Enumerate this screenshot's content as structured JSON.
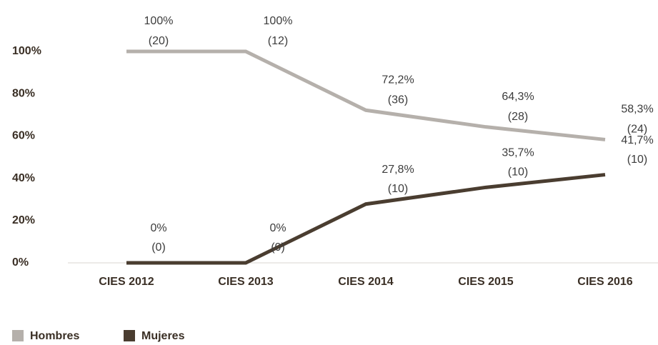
{
  "chart_data": {
    "type": "line",
    "categories": [
      "CIES 2012",
      "CIES 2013",
      "CIES 2014",
      "CIES 2015",
      "CIES 2016"
    ],
    "series": [
      {
        "name": "Hombres",
        "color": "#b5b0ab",
        "values": [
          100,
          100,
          72.2,
          64.3,
          58.3
        ],
        "value_labels": [
          "100%",
          "100%",
          "72,2%",
          "64,3%",
          "58,3%"
        ],
        "count_labels": [
          "(20)",
          "(12)",
          "(36)",
          "(28)",
          "(24)"
        ]
      },
      {
        "name": "Mujeres",
        "color": "#4a3d30",
        "values": [
          0,
          0,
          27.8,
          35.7,
          41.7
        ],
        "value_labels": [
          "0%",
          "0%",
          "27,8%",
          "35,7%",
          "41,7%"
        ],
        "count_labels": [
          "(0)",
          "(0)",
          "(10)",
          "(10)",
          "(10)"
        ]
      }
    ],
    "ylim": [
      0,
      100
    ],
    "yticks": [
      {
        "value": 0,
        "label": "0%"
      },
      {
        "value": 20,
        "label": "20%"
      },
      {
        "value": 40,
        "label": "40%"
      },
      {
        "value": 60,
        "label": "60%"
      },
      {
        "value": 80,
        "label": "80%"
      },
      {
        "value": 100,
        "label": "100%"
      }
    ],
    "grid": false
  }
}
